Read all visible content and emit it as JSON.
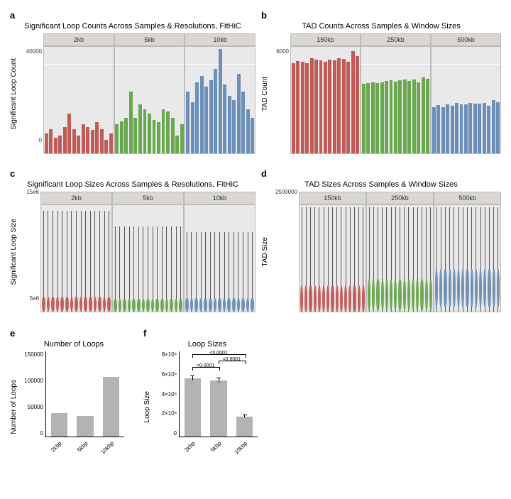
{
  "colors": {
    "panel_bg": "#e9e9e9",
    "facet_header_bg": "#d9d7cf",
    "grid": "#ffffff",
    "red": "#c15b58",
    "green": "#6aa84f",
    "blue": "#6b8fb8",
    "grey_bar": "#b3b3b3",
    "axis": "#000000"
  },
  "panel_a": {
    "letter": "a",
    "title": "Significant Loop Counts Across Samples & Resolutions, FitHiC",
    "ylabel": "Significant Loop Count",
    "ymax": 48000,
    "ytick_values": [
      0,
      40000
    ],
    "ytick_labels": [
      "0",
      "40000"
    ],
    "facets": [
      {
        "label": "2kb",
        "color": "#c15b58",
        "values": [
          9000,
          11000,
          7000,
          8000,
          12000,
          18000,
          11000,
          8000,
          13000,
          12000,
          10500,
          14000,
          11000,
          6000,
          9000
        ]
      },
      {
        "label": "5kb",
        "color": "#6aa84f",
        "values": [
          13000,
          14500,
          16000,
          28000,
          16000,
          22000,
          20000,
          18000,
          15000,
          14000,
          20000,
          19000,
          16000,
          8000,
          13000
        ]
      },
      {
        "label": "10kb",
        "color": "#6b8fb8",
        "values": [
          28000,
          23000,
          32000,
          35000,
          30000,
          33000,
          38000,
          47000,
          31000,
          26000,
          24000,
          36000,
          28000,
          20000,
          16000
        ]
      }
    ]
  },
  "panel_b": {
    "letter": "b",
    "title": "TAD Counts Across Samples & Window Sizes",
    "ylabel": "TAD Count",
    "ymax": 7200,
    "ytick_values": [
      6000
    ],
    "ytick_labels": [
      "6000"
    ],
    "facets": [
      {
        "label": "150kb",
        "color": "#c15b58",
        "values": [
          6100,
          6250,
          6200,
          6100,
          6450,
          6350,
          6300,
          6200,
          6350,
          6300,
          6450,
          6400,
          6200,
          6900,
          6600
        ]
      },
      {
        "label": "250kb",
        "color": "#6aa84f",
        "values": [
          4700,
          4750,
          4800,
          4750,
          4800,
          4900,
          4950,
          4850,
          4950,
          5000,
          4900,
          5000,
          4800,
          5150,
          5050
        ]
      },
      {
        "label": "500kb",
        "color": "#6b8fb8",
        "values": [
          3100,
          3250,
          3100,
          3300,
          3200,
          3400,
          3300,
          3300,
          3400,
          3350,
          3350,
          3400,
          3200,
          3600,
          3450
        ]
      }
    ]
  },
  "panel_c": {
    "letter": "c",
    "title": "Significant Loop Sizes Across Samples & Resolutions, FitHiC",
    "ylabel": "Significant Loop Size",
    "ymin": 5000000,
    "ymax": 15000000,
    "ytick_values": [
      5000000,
      15000000
    ],
    "ytick_labels": [
      "5e6",
      "15e6"
    ],
    "facets": [
      {
        "label": "2kb",
        "color": "#c15b58",
        "n": 15,
        "body_h": 0.14,
        "whisker_top": 0.95
      },
      {
        "label": "5kb",
        "color": "#6aa84f",
        "n": 15,
        "body_h": 0.12,
        "whisker_top": 0.8
      },
      {
        "label": "10kb",
        "color": "#6b8fb8",
        "n": 15,
        "body_h": 0.13,
        "whisker_top": 0.75
      }
    ]
  },
  "panel_d": {
    "letter": "d",
    "title": "TAD Sizes Across Samples & Window Sizes",
    "ylabel": "TAD Size",
    "ymin": 0,
    "ymax": 2500000,
    "ytick_values": [
      2500000
    ],
    "ytick_labels": [
      "2500000"
    ],
    "facets": [
      {
        "label": "150kb",
        "color": "#c15b58",
        "n": 15,
        "body_h": 0.26,
        "body_center": 0.12,
        "whisker_top": 0.98
      },
      {
        "label": "250kb",
        "color": "#6aa84f",
        "n": 15,
        "body_h": 0.3,
        "body_center": 0.16,
        "whisker_top": 0.98
      },
      {
        "label": "500kb",
        "color": "#6b8fb8",
        "n": 15,
        "body_h": 0.36,
        "body_center": 0.22,
        "whisker_top": 0.98
      }
    ]
  },
  "panel_e": {
    "letter": "e",
    "title": "Number of Loops",
    "ylabel": "Number of Loops",
    "ymax": 150000,
    "yticks": [
      0,
      50000,
      100000,
      150000
    ],
    "ytick_labels": [
      "0",
      "50000",
      "100000",
      "150000"
    ],
    "categories": [
      "2kbp",
      "5kbp",
      "10kbp"
    ],
    "values": [
      41000,
      36000,
      105000
    ],
    "bar_color": "#b3b3b3"
  },
  "panel_f": {
    "letter": "f",
    "title": "Loop Sizes",
    "ylabel": "Loop Size",
    "ymax": 8000000,
    "yticks": [
      0,
      2000000,
      4000000,
      6000000,
      8000000
    ],
    "ytick_labels": [
      "0",
      "2×10⁶",
      "4×10⁶",
      "6×10⁶",
      "8×10⁶"
    ],
    "categories": [
      "2kbp",
      "5kbp",
      "10kbp"
    ],
    "values": [
      5500000,
      5250000,
      1900000
    ],
    "errors": [
      200000,
      200000,
      120000
    ],
    "bar_color": "#b3b3b3",
    "sig": [
      {
        "from": 0,
        "to": 1,
        "y": 6200000,
        "label": "<0.0001"
      },
      {
        "from": 1,
        "to": 2,
        "y": 6800000,
        "label": "<0.0001"
      },
      {
        "from": 0,
        "to": 2,
        "y": 7400000,
        "label": "<0.0001"
      }
    ]
  }
}
